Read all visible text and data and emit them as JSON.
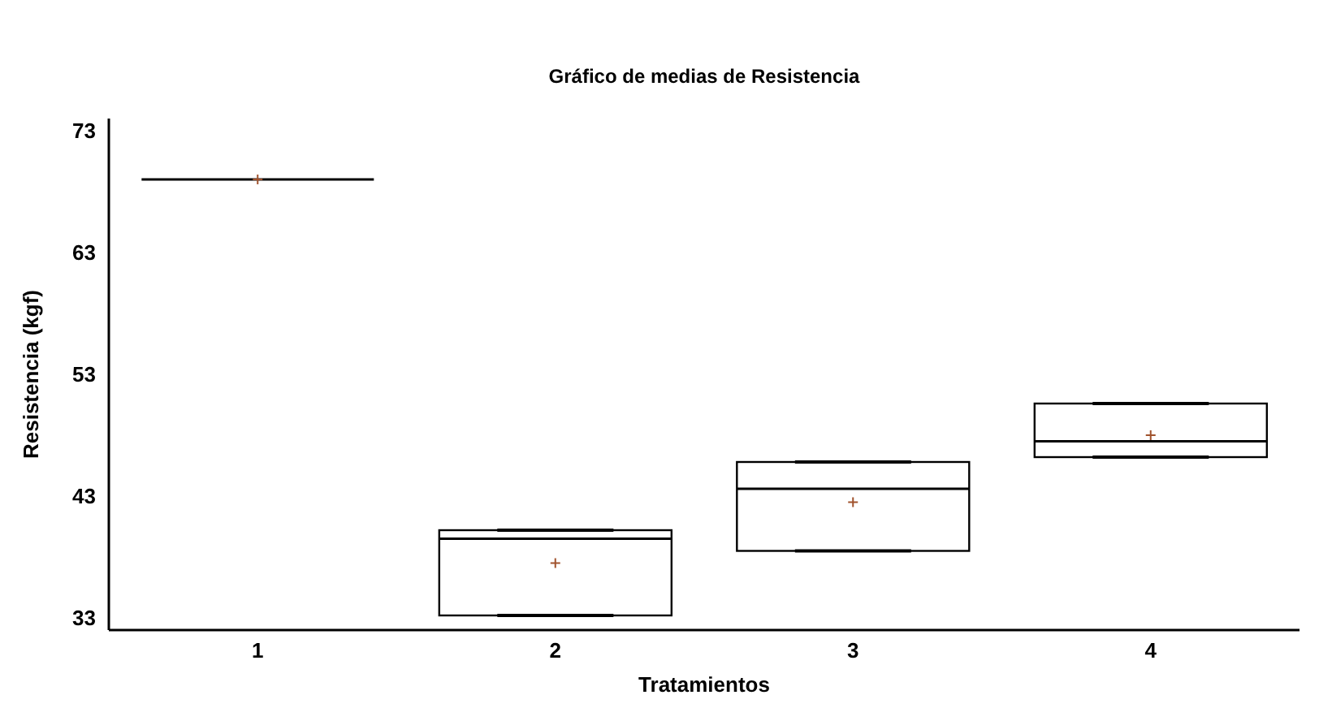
{
  "chart_data": {
    "type": "box",
    "title": "Gráfico de medias de Resistencia",
    "xlabel": "Tratamientos",
    "ylabel": "Resistencia (kgf)",
    "categories": [
      "1",
      "2",
      "3",
      "4"
    ],
    "series": [
      {
        "color": "#000000",
        "boxes": [
          {
            "low": 69,
            "q1": 69,
            "median": 69,
            "q3": 69,
            "high": 69,
            "mean": 69
          },
          {
            "low": 33.2,
            "q1": 33.2,
            "median": 39.5,
            "q3": 40.2,
            "high": 40.2,
            "mean": 37.5
          },
          {
            "low": 38.5,
            "q1": 38.5,
            "median": 43.6,
            "q3": 45.8,
            "high": 45.8,
            "mean": 42.5
          },
          {
            "low": 46.2,
            "q1": 46.2,
            "median": 47.5,
            "q3": 50.6,
            "high": 50.6,
            "mean": 48.0
          }
        ]
      }
    ],
    "ylim": [
      32,
      74
    ],
    "yticks": [
      33,
      43,
      53,
      63,
      73
    ],
    "marker": "cross"
  }
}
